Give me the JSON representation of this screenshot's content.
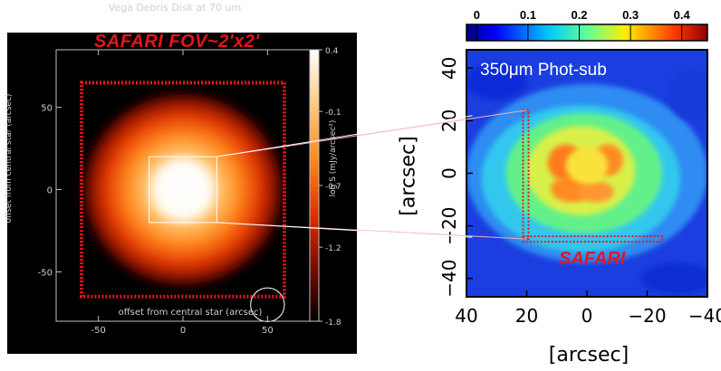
{
  "chart_data": [
    {
      "type": "heatmap",
      "title": "Vega Debris Disk at 70 um",
      "xlabel": "offset from central star (arcsec)",
      "ylabel": "offset from central star (arcsec)",
      "x_ticks": [
        -50,
        0,
        50
      ],
      "y_ticks": [
        -50,
        0,
        50
      ],
      "xlim": [
        -75,
        75
      ],
      "ylim": [
        -80,
        85
      ],
      "colorbar": {
        "label": "log S (mJy/arcsec²)",
        "ticks": [
          "0.4",
          "-0.1",
          "-0.7",
          "-1.2",
          "-1.8"
        ],
        "range": [
          -1.8,
          0.4
        ],
        "colormap": "black-red-orange-white"
      },
      "annotation": "SAFARI  FOV~2'x2'",
      "fov_box_arcsec": [
        -60,
        60,
        -65,
        65
      ],
      "zoom_box_arcsec": [
        -20,
        20,
        -20,
        20
      ],
      "beam_circle_center": [
        50,
        -70
      ],
      "beam_circle_radius": 10
    },
    {
      "type": "heatmap",
      "title": "350μm Phot-sub",
      "xlabel": "[arcsec]",
      "ylabel": "[arcsec]",
      "x_ticks": [
        "40",
        "20",
        "0",
        "−20",
        "−40"
      ],
      "y_ticks": [
        "40",
        "20",
        "0",
        "−20",
        "−40"
      ],
      "xlim": [
        40,
        -40
      ],
      "ylim": [
        -47,
        47
      ],
      "colorbar": {
        "ticks": [
          "0",
          "0.1",
          "0.2",
          "0.3",
          "0.4"
        ],
        "range": [
          -0.02,
          0.45
        ],
        "colormap": "jet"
      },
      "annotation": "SAFARI",
      "safari_frame_arcsec": {
        "x": 20,
        "y_top": 24,
        "y_bottom": -25,
        "x_end": -25
      }
    }
  ],
  "labels": {
    "left_title": "Vega Debris Disk at 70 um",
    "left_xlabel": "offset from central star (arcsec)",
    "left_ylabel": "offset from central star (arcsec)",
    "cbar_label": "log S (mJy/arcsec²)",
    "fov": "SAFARI  FOV~2'x2'",
    "band": "350μm  Phot-sub",
    "safari": "SAFARI",
    "right_ylabel": "[arcsec]",
    "right_xlabel": "[arcsec]"
  },
  "colors": {
    "accent_red": "#e8141c",
    "background_left": "#000000",
    "background_right": "#ffffff"
  }
}
